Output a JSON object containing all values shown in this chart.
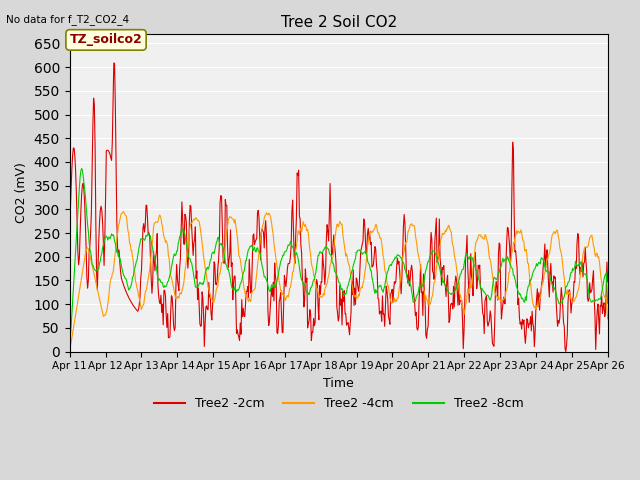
{
  "title": "Tree 2 Soil CO2",
  "subtitle": "No data for f_T2_CO2_4",
  "ylabel": "CO2 (mV)",
  "xlabel": "Time",
  "annotation_label": "TZ_soilco2",
  "ylim": [
    0,
    670
  ],
  "yticks": [
    0,
    50,
    100,
    150,
    200,
    250,
    300,
    350,
    400,
    450,
    500,
    550,
    600,
    650
  ],
  "xtick_labels": [
    "Apr 11",
    "Apr 12",
    "Apr 13",
    "Apr 14",
    "Apr 15",
    "Apr 16",
    "Apr 17",
    "Apr 18",
    "Apr 19",
    "Apr 20",
    "Apr 21",
    "Apr 22",
    "Apr 23",
    "Apr 24",
    "Apr 25",
    "Apr 26"
  ],
  "legend_labels": [
    "Tree2 -2cm",
    "Tree2 -4cm",
    "Tree2 -8cm"
  ],
  "line_colors": [
    "#dd0000",
    "#ff9900",
    "#00cc00"
  ],
  "background_color": "#e8e8e8",
  "plot_bg_color": "#f0f0f0",
  "seed": 42
}
